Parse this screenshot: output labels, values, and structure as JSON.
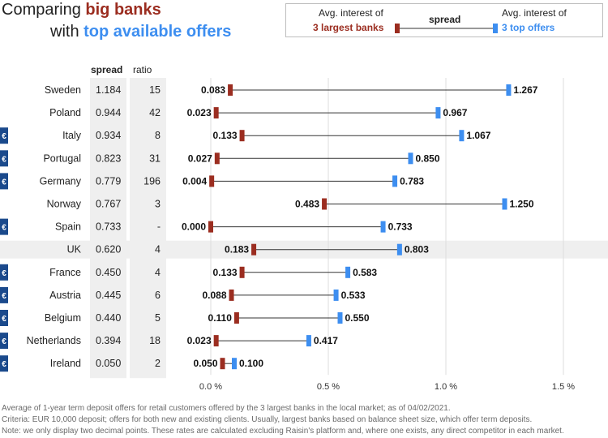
{
  "title": {
    "line1_prefix": "Comparing ",
    "line1_highlight": "big banks",
    "line2_prefix": "with ",
    "line2_highlight": "top available offers"
  },
  "legend": {
    "left_line1": "Avg. interest of",
    "left_line2": "3 largest banks",
    "center": "spread",
    "right_line1": "Avg. interest of",
    "right_line2": "3 top offers"
  },
  "columns": {
    "spread": "spread",
    "ratio": "ratio"
  },
  "euro_symbol": "€",
  "colors": {
    "big_banks": "#9b2d20",
    "top_offers": "#3d8ef0",
    "euro_badge": "#1b4a8c",
    "highlight_row": "#efefef",
    "column_band": "#efefef",
    "grid": "#dddddd"
  },
  "footnotes": [
    "Average of 1-year term deposit offers for retail customers offered by the 3 largest banks in the local market; as of 04/02/2021.",
    "Criteria: EUR 10,000 deposit; offers for both new and existing clients. Usually, largest banks based on balance sheet size, which offer term deposits.",
    "Note: we only display two decimal points. These rates are calculated excluding Raisin's platform and, where one exists, any direct competitor in each market."
  ],
  "chart_data": {
    "type": "dumbbell",
    "title": "Comparing big banks with top available offers",
    "x_ticks": [
      0,
      0.5,
      1.0,
      1.5
    ],
    "x_tick_labels": [
      "0.0 %",
      "0.5 %",
      "1.0 %",
      "1.5 %"
    ],
    "xlim": [
      0,
      1.5
    ],
    "grid": true,
    "highlighted_category": "UK",
    "series": [
      {
        "name": "Avg. interest of 3 largest banks",
        "color": "#9b2d20"
      },
      {
        "name": "Avg. interest of 3 top offers",
        "color": "#3d8ef0"
      }
    ],
    "rows": [
      {
        "country": "Sweden",
        "euro": false,
        "spread": "1.184",
        "ratio": "15",
        "big": 0.083,
        "big_label": "0.083",
        "top": 1.267,
        "top_label": "1.267"
      },
      {
        "country": "Poland",
        "euro": false,
        "spread": "0.944",
        "ratio": "42",
        "big": 0.023,
        "big_label": "0.023",
        "top": 0.967,
        "top_label": "0.967"
      },
      {
        "country": "Italy",
        "euro": true,
        "spread": "0.934",
        "ratio": "8",
        "big": 0.133,
        "big_label": "0.133",
        "top": 1.067,
        "top_label": "1.067"
      },
      {
        "country": "Portugal",
        "euro": true,
        "spread": "0.823",
        "ratio": "31",
        "big": 0.027,
        "big_label": "0.027",
        "top": 0.85,
        "top_label": "0.850"
      },
      {
        "country": "Germany",
        "euro": true,
        "spread": "0.779",
        "ratio": "196",
        "big": 0.004,
        "big_label": "0.004",
        "top": 0.783,
        "top_label": "0.783"
      },
      {
        "country": "Norway",
        "euro": false,
        "spread": "0.767",
        "ratio": "3",
        "big": 0.483,
        "big_label": "0.483",
        "top": 1.25,
        "top_label": "1.250"
      },
      {
        "country": "Spain",
        "euro": true,
        "spread": "0.733",
        "ratio": "-",
        "big": 0.0,
        "big_label": "0.000",
        "top": 0.733,
        "top_label": "0.733"
      },
      {
        "country": "UK",
        "euro": false,
        "spread": "0.620",
        "ratio": "4",
        "big": 0.183,
        "big_label": "0.183",
        "top": 0.803,
        "top_label": "0.803"
      },
      {
        "country": "France",
        "euro": true,
        "spread": "0.450",
        "ratio": "4",
        "big": 0.133,
        "big_label": "0.133",
        "top": 0.583,
        "top_label": "0.583"
      },
      {
        "country": "Austria",
        "euro": true,
        "spread": "0.445",
        "ratio": "6",
        "big": 0.088,
        "big_label": "0.088",
        "top": 0.533,
        "top_label": "0.533"
      },
      {
        "country": "Belgium",
        "euro": true,
        "spread": "0.440",
        "ratio": "5",
        "big": 0.11,
        "big_label": "0.110",
        "top": 0.55,
        "top_label": "0.550"
      },
      {
        "country": "Netherlands",
        "euro": true,
        "spread": "0.394",
        "ratio": "18",
        "big": 0.023,
        "big_label": "0.023",
        "top": 0.417,
        "top_label": "0.417"
      },
      {
        "country": "Ireland",
        "euro": true,
        "spread": "0.050",
        "ratio": "2",
        "big": 0.05,
        "big_label": "0.050",
        "top": 0.1,
        "top_label": "0.100"
      }
    ]
  }
}
